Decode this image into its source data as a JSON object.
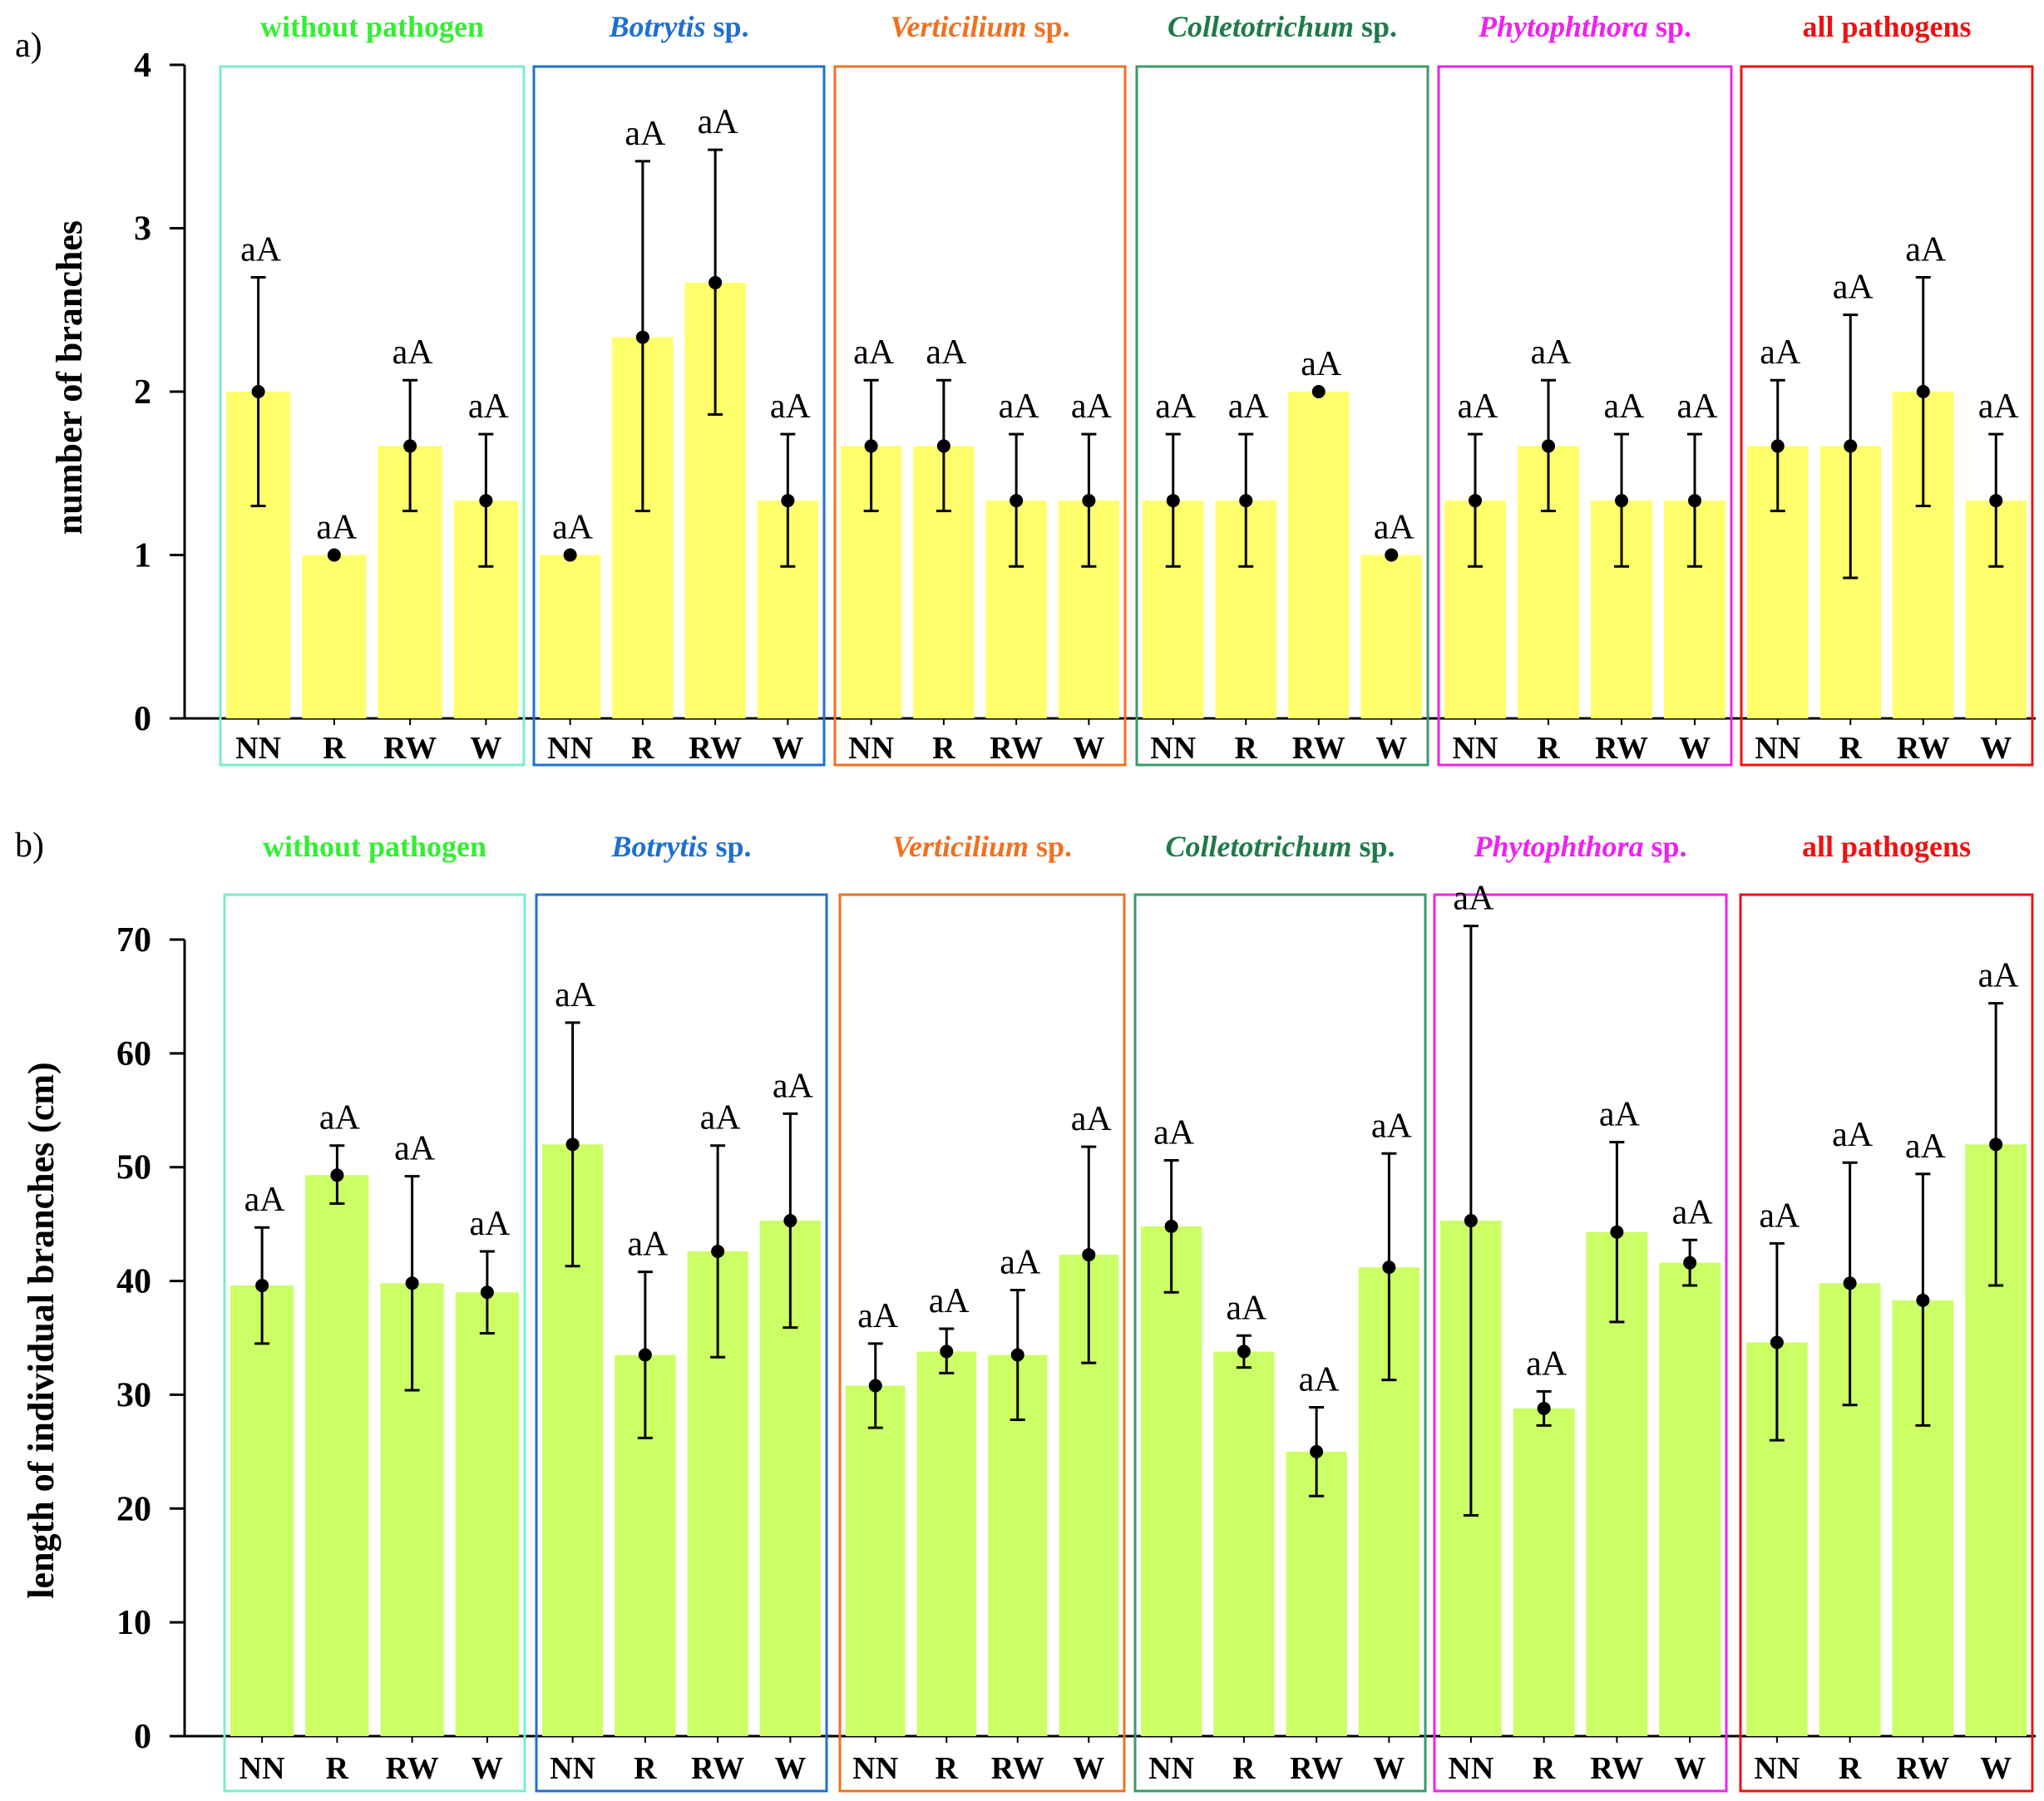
{
  "chart_data": [
    {
      "panel_label": "a)",
      "type": "bar",
      "ylabel": "number of branches",
      "ylim": [
        0,
        4
      ],
      "yticks": [
        "0",
        "1",
        "2",
        "3",
        "4"
      ],
      "bar_color": "#ffff6b",
      "groups": [
        {
          "title_italic": "",
          "title_rest": "without pathogen",
          "color": "#33ee33",
          "box_color": "#77eecc",
          "categories": [
            "NN",
            "R",
            "RW",
            "W"
          ],
          "values": [
            2.0,
            1.0,
            1.667,
            1.333
          ],
          "err_low": [
            1.3,
            1.0,
            1.27,
            0.93
          ],
          "err_high": [
            2.7,
            1.0,
            2.07,
            1.74
          ],
          "labels": [
            "aA",
            "aA",
            "aA",
            "aA"
          ]
        },
        {
          "title_italic": "Botrytis",
          "title_rest": " sp.",
          "color": "#1e6fd0",
          "box_color": "#1e6fd0",
          "categories": [
            "NN",
            "R",
            "RW",
            "W"
          ],
          "values": [
            1.0,
            2.333,
            2.667,
            1.333
          ],
          "err_low": [
            1.0,
            1.27,
            1.86,
            0.93
          ],
          "err_high": [
            1.0,
            3.41,
            3.48,
            1.74
          ],
          "labels": [
            "aA",
            "aA",
            "aA",
            "aA"
          ]
        },
        {
          "title_italic": "Verticilium",
          "title_rest": " sp.",
          "color": "#f07020",
          "box_color": "#f07020",
          "categories": [
            "NN",
            "R",
            "RW",
            "W"
          ],
          "values": [
            1.667,
            1.667,
            1.333,
            1.333
          ],
          "err_low": [
            1.27,
            1.27,
            0.93,
            0.93
          ],
          "err_high": [
            2.07,
            2.07,
            1.74,
            1.74
          ],
          "labels": [
            "aA",
            "aA",
            "aA",
            "aA"
          ]
        },
        {
          "title_italic": "Colletotrichum",
          "title_rest": " sp.",
          "color": "#1f7a4a",
          "box_color": "#3a9a6a",
          "categories": [
            "NN",
            "R",
            "RW",
            "W"
          ],
          "values": [
            1.333,
            1.333,
            2.0,
            1.0
          ],
          "err_low": [
            0.93,
            0.93,
            2.0,
            1.0
          ],
          "err_high": [
            1.74,
            1.74,
            2.0,
            1.0
          ],
          "labels": [
            "aA",
            "aA",
            "aA",
            "aA"
          ]
        },
        {
          "title_italic": "Phytophthora",
          "title_rest": " sp.",
          "color": "#ee22ee",
          "box_color": "#ee22ee",
          "categories": [
            "NN",
            "R",
            "RW",
            "W"
          ],
          "values": [
            1.333,
            1.667,
            1.333,
            1.333
          ],
          "err_low": [
            0.93,
            1.27,
            0.93,
            0.93
          ],
          "err_high": [
            1.74,
            2.07,
            1.74,
            1.74
          ],
          "labels": [
            "aA",
            "aA",
            "aA",
            "aA"
          ]
        },
        {
          "title_italic": "",
          "title_rest": "all pathogens",
          "color": "#ee1111",
          "box_color": "#ee1111",
          "categories": [
            "NN",
            "R",
            "RW",
            "W"
          ],
          "values": [
            1.667,
            1.667,
            2.0,
            1.333
          ],
          "err_low": [
            1.27,
            0.86,
            1.3,
            0.93
          ],
          "err_high": [
            2.07,
            2.47,
            2.7,
            1.74
          ],
          "labels": [
            "aA",
            "aA",
            "aA",
            "aA"
          ]
        }
      ]
    },
    {
      "panel_label": "b)",
      "type": "bar",
      "ylabel": "length of individual branches (cm)",
      "ylim": [
        0,
        70
      ],
      "yticks": [
        "0",
        "10",
        "20",
        "30",
        "40",
        "50",
        "60",
        "70"
      ],
      "bar_color": "#ccff66",
      "groups": [
        {
          "title_italic": "",
          "title_rest": "without pathogen",
          "color": "#33ee33",
          "box_color": "#77eecc",
          "categories": [
            "NN",
            "R",
            "RW",
            "W"
          ],
          "values": [
            39.6,
            49.3,
            39.8,
            39.0
          ],
          "err_low": [
            34.5,
            46.8,
            30.4,
            35.4
          ],
          "err_high": [
            44.7,
            51.9,
            49.2,
            42.6
          ],
          "labels": [
            "aA",
            "aA",
            "aA",
            "aA"
          ]
        },
        {
          "title_italic": "Botrytis",
          "title_rest": " sp.",
          "color": "#1e6fd0",
          "box_color": "#1e6fd0",
          "categories": [
            "NN",
            "R",
            "RW",
            "W"
          ],
          "values": [
            52.0,
            33.5,
            42.6,
            45.3
          ],
          "err_low": [
            41.3,
            26.2,
            33.3,
            35.9
          ],
          "err_high": [
            62.7,
            40.8,
            51.9,
            54.7
          ],
          "labels": [
            "aA",
            "aA",
            "aA",
            "aA"
          ]
        },
        {
          "title_italic": "Verticilium",
          "title_rest": " sp.",
          "color": "#f07020",
          "box_color": "#f07020",
          "categories": [
            "NN",
            "R",
            "RW",
            "W"
          ],
          "values": [
            30.8,
            33.8,
            33.5,
            42.3
          ],
          "err_low": [
            27.1,
            31.9,
            27.8,
            32.8
          ],
          "err_high": [
            34.5,
            35.8,
            39.2,
            51.8
          ],
          "labels": [
            "aA",
            "aA",
            "aA",
            "aA"
          ]
        },
        {
          "title_italic": "Colletotrichum",
          "title_rest": " sp.",
          "color": "#1f7a4a",
          "box_color": "#3a9a6a",
          "categories": [
            "NN",
            "R",
            "RW",
            "W"
          ],
          "values": [
            44.8,
            33.8,
            25.0,
            41.2
          ],
          "err_low": [
            39.0,
            32.4,
            21.1,
            31.3
          ],
          "err_high": [
            50.6,
            35.2,
            28.9,
            51.2
          ],
          "labels": [
            "aA",
            "aA",
            "aA",
            "aA"
          ]
        },
        {
          "title_italic": "Phytophthora",
          "title_rest": " sp.",
          "color": "#ee22ee",
          "box_color": "#ee22ee",
          "categories": [
            "NN",
            "R",
            "RW",
            "W"
          ],
          "values": [
            45.3,
            28.8,
            44.3,
            41.6
          ],
          "err_low": [
            19.4,
            27.3,
            36.4,
            39.6
          ],
          "err_high": [
            71.2,
            30.3,
            52.2,
            43.6
          ],
          "labels": [
            "aA",
            "aA",
            "aA",
            "aA"
          ]
        },
        {
          "title_italic": "",
          "title_rest": "all pathogens",
          "color": "#ee1111",
          "box_color": "#ee1111",
          "categories": [
            "NN",
            "R",
            "RW",
            "W"
          ],
          "values": [
            34.6,
            39.8,
            38.3,
            52.0
          ],
          "err_low": [
            26.0,
            29.1,
            27.3,
            39.6
          ],
          "err_high": [
            43.3,
            50.4,
            49.4,
            64.4
          ],
          "labels": [
            "aA",
            "aA",
            "aA",
            "aA"
          ]
        }
      ]
    }
  ]
}
